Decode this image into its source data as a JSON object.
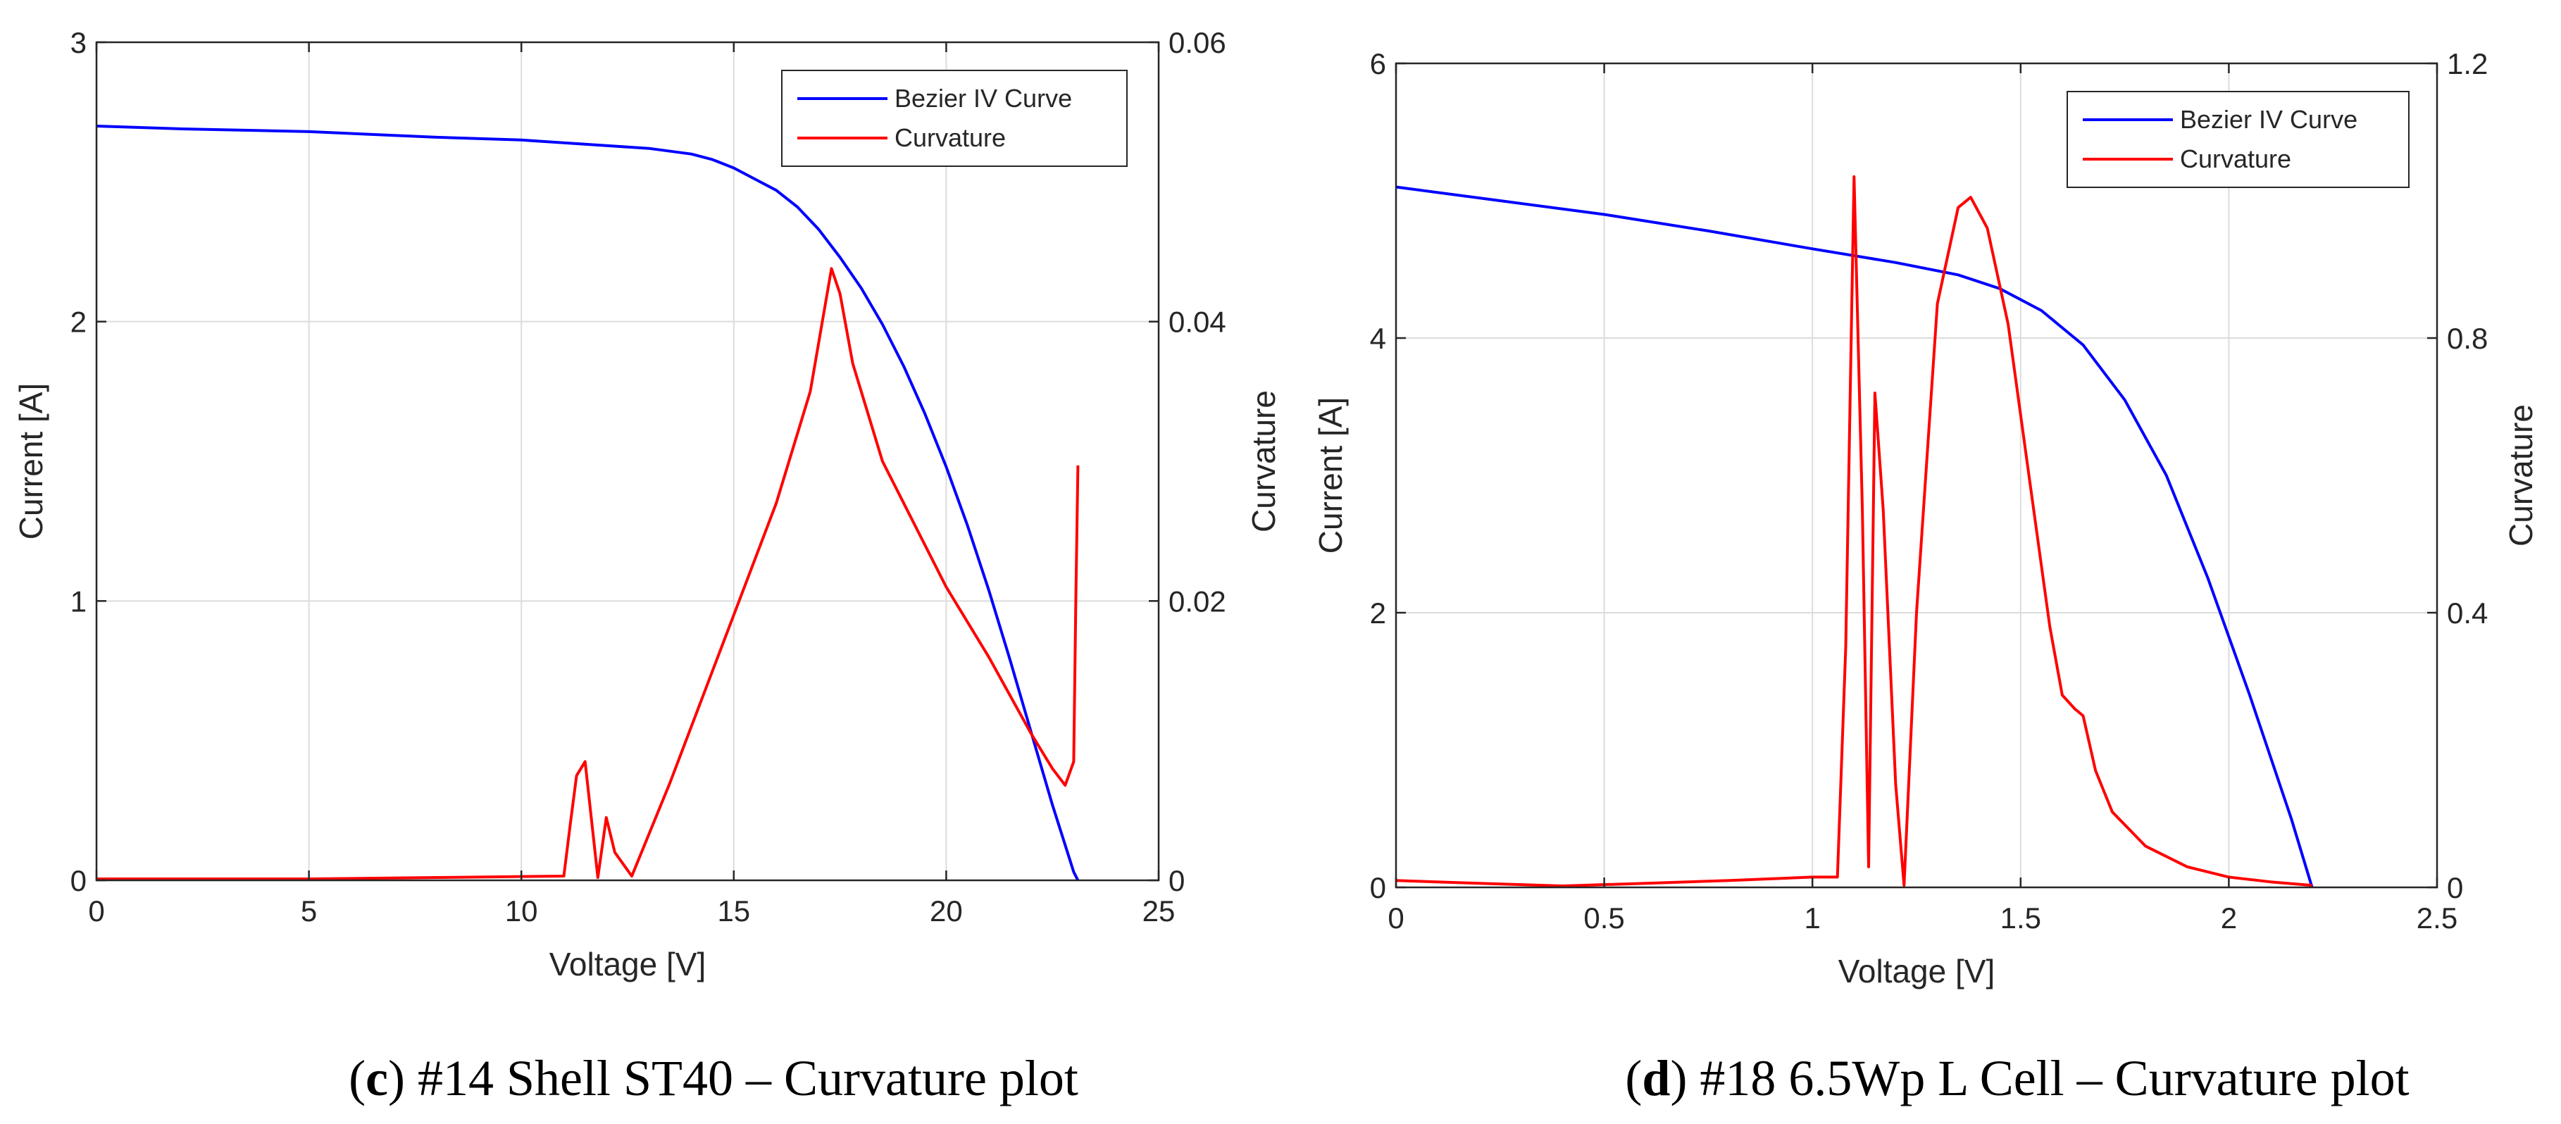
{
  "chart_data": [
    {
      "type": "line",
      "xlabel": "Voltage [V]",
      "ylabel_left": "Current [A]",
      "ylabel_right": "Curvature",
      "xlim": [
        0,
        25
      ],
      "ylim_left": [
        0,
        3
      ],
      "ylim_right": [
        0,
        0.06
      ],
      "xticks": [
        0,
        5,
        10,
        15,
        20,
        25
      ],
      "xtick_labels": [
        "0",
        "5",
        "10",
        "15",
        "20",
        "25"
      ],
      "yticks_left": [
        0,
        1,
        2,
        3
      ],
      "ytick_labels_left": [
        "0",
        "1",
        "2",
        "3"
      ],
      "yticks_right": [
        0,
        0.02,
        0.04,
        0.06
      ],
      "ytick_labels_right": [
        "0",
        "0.02",
        "0.04",
        "0.06"
      ],
      "grid": true,
      "legend_position": "top-right",
      "series": [
        {
          "name": "Bezier IV Curve",
          "axis": "left",
          "color": "#0000ff",
          "x": [
            0,
            2,
            5,
            8,
            10,
            12,
            13,
            14,
            14.5,
            15,
            15.5,
            16,
            16.5,
            17,
            17.5,
            18,
            18.5,
            19,
            19.5,
            20,
            20.5,
            21,
            21.5,
            22,
            22.5,
            23,
            23.1
          ],
          "y": [
            2.7,
            2.69,
            2.68,
            2.66,
            2.65,
            2.63,
            2.62,
            2.6,
            2.58,
            2.55,
            2.51,
            2.47,
            2.41,
            2.33,
            2.23,
            2.12,
            1.99,
            1.84,
            1.67,
            1.48,
            1.27,
            1.04,
            0.79,
            0.53,
            0.27,
            0.03,
            0.0
          ]
        },
        {
          "name": "Curvature",
          "axis": "right",
          "color": "#ff0000",
          "x": [
            0,
            3,
            5,
            8,
            11,
            11.15,
            11.3,
            11.5,
            11.8,
            12.0,
            12.2,
            12.6,
            13.5,
            15,
            16,
            16.8,
            17.3,
            17.5,
            17.8,
            18.5,
            20,
            21,
            22,
            22.5,
            22.8,
            23.0,
            23.05,
            23.1
          ],
          "y": [
            0.0001,
            0.0001,
            0.0001,
            0.0002,
            0.0003,
            0.004,
            0.0075,
            0.0085,
            0.0002,
            0.0045,
            0.002,
            0.0003,
            0.007,
            0.019,
            0.027,
            0.035,
            0.0438,
            0.042,
            0.037,
            0.03,
            0.021,
            0.016,
            0.0105,
            0.008,
            0.0068,
            0.0085,
            0.02,
            0.0297
          ]
        }
      ]
    },
    {
      "type": "line",
      "xlabel": "Voltage [V]",
      "ylabel_left": "Current [A]",
      "ylabel_right": "Curvature",
      "xlim": [
        0,
        2.5
      ],
      "ylim_left": [
        0,
        6
      ],
      "ylim_right": [
        0,
        1.2
      ],
      "xticks": [
        0,
        0.5,
        1,
        1.5,
        2,
        2.5
      ],
      "xtick_labels": [
        "0",
        "0.5",
        "1",
        "1.5",
        "2",
        "2.5"
      ],
      "yticks_left": [
        0,
        2,
        4,
        6
      ],
      "ytick_labels_left": [
        "0",
        "2",
        "4",
        "6"
      ],
      "yticks_right": [
        0,
        0.4,
        0.8,
        1.2
      ],
      "ytick_labels_right": [
        "0",
        "0.4",
        "0.8",
        "1.2"
      ],
      "grid": true,
      "legend_position": "top-right",
      "series": [
        {
          "name": "Bezier IV Curve",
          "axis": "left",
          "color": "#0000ff",
          "x": [
            0,
            0.25,
            0.5,
            0.75,
            1.0,
            1.2,
            1.35,
            1.45,
            1.55,
            1.65,
            1.75,
            1.85,
            1.95,
            2.05,
            2.15,
            2.2
          ],
          "y": [
            5.1,
            5.0,
            4.9,
            4.78,
            4.65,
            4.55,
            4.46,
            4.36,
            4.2,
            3.95,
            3.55,
            3.0,
            2.25,
            1.4,
            0.5,
            0.0
          ]
        },
        {
          "name": "Curvature",
          "axis": "right",
          "color": "#ff0000",
          "x": [
            0,
            0.2,
            0.4,
            0.6,
            0.8,
            1.0,
            1.06,
            1.08,
            1.1,
            1.12,
            1.135,
            1.15,
            1.17,
            1.2,
            1.22,
            1.25,
            1.3,
            1.35,
            1.38,
            1.42,
            1.47,
            1.52,
            1.57,
            1.6,
            1.63,
            1.65,
            1.68,
            1.72,
            1.8,
            1.9,
            2.0,
            2.1,
            2.2
          ],
          "y": [
            0.01,
            0.006,
            0.002,
            0.006,
            0.01,
            0.015,
            0.015,
            0.35,
            1.035,
            0.55,
            0.03,
            0.72,
            0.55,
            0.15,
            0.003,
            0.4,
            0.85,
            0.99,
            1.005,
            0.96,
            0.82,
            0.6,
            0.38,
            0.28,
            0.26,
            0.25,
            0.17,
            0.11,
            0.06,
            0.03,
            0.015,
            0.008,
            0.003
          ]
        }
      ]
    }
  ],
  "captions": {
    "left": {
      "letter": "c",
      "text": " #14 Shell ST40 – Curvature plot"
    },
    "right": {
      "letter": "d",
      "text": " #18 6.5Wp L Cell – Curvature plot"
    }
  }
}
